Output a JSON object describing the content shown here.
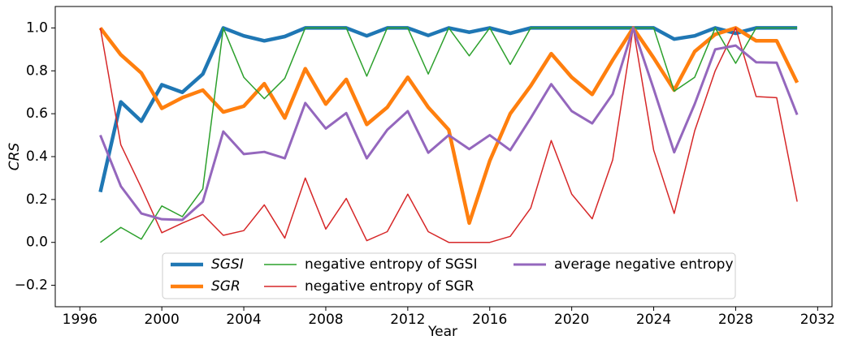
{
  "chart_data": {
    "type": "line",
    "x_label": "Year",
    "y_label": "CRS",
    "x": [
      1997,
      1998,
      1999,
      2000,
      2001,
      2002,
      2003,
      2004,
      2005,
      2006,
      2007,
      2008,
      2009,
      2010,
      2011,
      2012,
      2013,
      2014,
      2015,
      2016,
      2017,
      2018,
      2019,
      2020,
      2021,
      2022,
      2023,
      2024,
      2025,
      2026,
      2027,
      2028,
      2029,
      2030,
      2031
    ],
    "series": [
      {
        "name": "SGSI",
        "color": "#1f77b4",
        "width": 4.5,
        "values": [
          0.235,
          0.655,
          0.565,
          0.735,
          0.7,
          0.785,
          1.0,
          0.963,
          0.94,
          0.96,
          1.0,
          1.0,
          1.0,
          0.963,
          1.0,
          1.0,
          0.965,
          1.0,
          0.98,
          1.0,
          0.975,
          1.0,
          1.0,
          1.0,
          1.0,
          1.0,
          1.0,
          1.0,
          0.948,
          0.963,
          1.0,
          0.975,
          1.0,
          1.0,
          1.0
        ]
      },
      {
        "name": "SGR",
        "color": "#ff7f0e",
        "width": 4.5,
        "values": [
          1.0,
          0.875,
          0.79,
          0.625,
          0.675,
          0.71,
          0.608,
          0.635,
          0.74,
          0.58,
          0.81,
          0.645,
          0.76,
          0.55,
          0.63,
          0.77,
          0.63,
          0.525,
          0.09,
          0.38,
          0.6,
          0.73,
          0.88,
          0.77,
          0.69,
          0.85,
          1.0,
          0.86,
          0.71,
          0.89,
          0.97,
          1.0,
          0.94,
          0.94,
          0.745
        ]
      },
      {
        "name": "negative entropy of SGSI",
        "color": "#2ca02c",
        "width": 1.5,
        "values": [
          0.0,
          0.07,
          0.015,
          0.17,
          0.12,
          0.25,
          1.0,
          0.77,
          0.67,
          0.765,
          1.0,
          1.0,
          1.0,
          0.775,
          1.0,
          1.0,
          0.785,
          1.0,
          0.87,
          1.0,
          0.83,
          1.0,
          1.0,
          1.0,
          1.0,
          1.0,
          1.0,
          1.0,
          0.705,
          0.77,
          1.0,
          0.835,
          1.0,
          1.0,
          1.0
        ]
      },
      {
        "name": "negative entropy of SGR",
        "color": "#d62728",
        "width": 1.5,
        "values": [
          1.0,
          0.455,
          0.255,
          0.045,
          0.09,
          0.13,
          0.033,
          0.055,
          0.175,
          0.02,
          0.3,
          0.062,
          0.205,
          0.008,
          0.05,
          0.225,
          0.05,
          0.0,
          0.0,
          0.0,
          0.028,
          0.16,
          0.475,
          0.225,
          0.11,
          0.385,
          1.0,
          0.43,
          0.135,
          0.52,
          0.8,
          1.0,
          0.68,
          0.675,
          0.19
        ]
      },
      {
        "name": "average negative entropy",
        "color": "#9467bd",
        "width": 3,
        "values": [
          0.5,
          0.262,
          0.135,
          0.108,
          0.105,
          0.19,
          0.517,
          0.412,
          0.422,
          0.392,
          0.65,
          0.531,
          0.603,
          0.392,
          0.525,
          0.612,
          0.418,
          0.5,
          0.435,
          0.5,
          0.43,
          0.58,
          0.738,
          0.612,
          0.555,
          0.692,
          1.0,
          0.715,
          0.42,
          0.645,
          0.9,
          0.918,
          0.84,
          0.838,
          0.595
        ]
      }
    ],
    "xlim": [
      1994.8,
      2032.7
    ],
    "xticks": [
      1996,
      2000,
      2004,
      2008,
      2012,
      2016,
      2020,
      2024,
      2028,
      2032
    ],
    "ylim": [
      -0.3,
      1.1
    ],
    "yticks": [
      {
        "value": -0.2,
        "label": "−0.2"
      },
      {
        "value": 0,
        "label": "0.0"
      },
      {
        "value": 0.2,
        "label": "0.2"
      },
      {
        "value": 0.4,
        "label": "0.4"
      },
      {
        "value": 0.6,
        "label": "0.6"
      },
      {
        "value": 0.8,
        "label": "0.8"
      },
      {
        "value": 1.0,
        "label": "1.0"
      }
    ],
    "legend": "lower center",
    "legend_columns": 3
  }
}
